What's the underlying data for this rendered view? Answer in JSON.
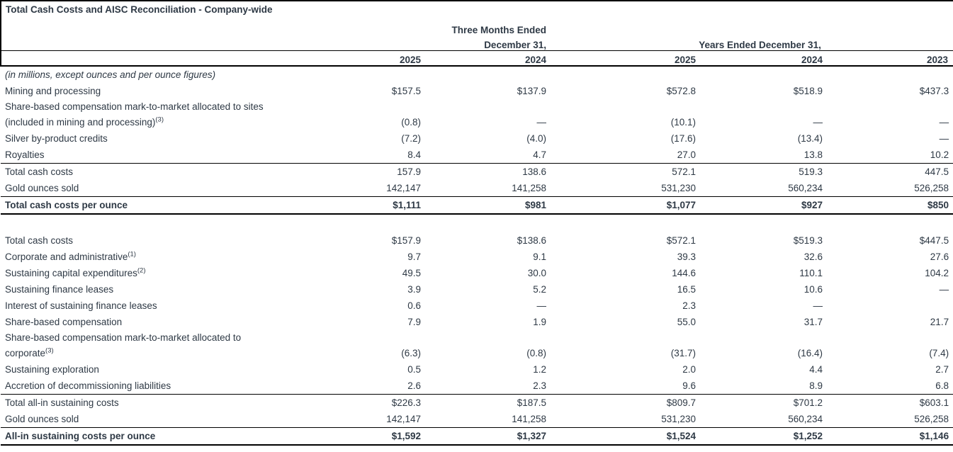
{
  "title": "Total Cash Costs and AISC Reconciliation - Company-wide",
  "header": {
    "quarter_group_line1": "Three Months Ended",
    "quarter_group_line2": "December 31,",
    "year_group": "Years Ended December 31,",
    "years": [
      "2025",
      "2024",
      "2025",
      "2024",
      "2023"
    ]
  },
  "note": "(in millions, except ounces and per ounce figures)",
  "colors": {
    "text": "#2e3945",
    "rule": "#000000",
    "background": "#ffffff"
  },
  "table": {
    "rows": [
      {
        "type": "note"
      },
      {
        "type": "data",
        "label": "Mining and processing",
        "values": [
          "$157.5",
          "$137.9",
          "$572.8",
          "$518.9",
          "$437.3"
        ]
      },
      {
        "type": "data",
        "label": "Share-based compensation mark-to-market allocated to sites",
        "label2": "(included in mining and processing)",
        "sup2": "(3)",
        "values": [
          "(0.8)",
          "—",
          "(10.1)",
          "—",
          "—"
        ]
      },
      {
        "type": "data",
        "label": "Silver by-product credits",
        "values": [
          "(7.2)",
          "(4.0)",
          "(17.6)",
          "(13.4)",
          "—"
        ]
      },
      {
        "type": "data",
        "label": "Royalties",
        "values": [
          "8.4",
          "4.7",
          "27.0",
          "13.8",
          "10.2"
        ]
      },
      {
        "type": "data",
        "label": "Total cash costs",
        "rule_top": true,
        "values": [
          "157.9",
          "138.6",
          "572.1",
          "519.3",
          "447.5"
        ]
      },
      {
        "type": "data",
        "label": "Gold ounces sold",
        "values": [
          "142,147",
          "141,258",
          "531,230",
          "560,234",
          "526,258"
        ]
      },
      {
        "type": "data",
        "label": "Total cash costs per ounce",
        "bold": true,
        "rule_top": true,
        "rule_bottom": true,
        "values": [
          "$1,111",
          "$981",
          "$1,077",
          "$927",
          "$850"
        ]
      },
      {
        "type": "spacer"
      },
      {
        "type": "data",
        "label": "Total cash costs",
        "values": [
          "$157.9",
          "$138.6",
          "$572.1",
          "$519.3",
          "$447.5"
        ]
      },
      {
        "type": "data",
        "label": "Corporate and administrative",
        "sup": "(1)",
        "values": [
          "9.7",
          "9.1",
          "39.3",
          "32.6",
          "27.6"
        ]
      },
      {
        "type": "data",
        "label": "Sustaining capital expenditures",
        "sup": "(2)",
        "values": [
          "49.5",
          "30.0",
          "144.6",
          "110.1",
          "104.2"
        ]
      },
      {
        "type": "data",
        "label": "Sustaining finance leases",
        "values": [
          "3.9",
          "5.2",
          "16.5",
          "10.6",
          "—"
        ]
      },
      {
        "type": "data",
        "label": "Interest of sustaining finance leases",
        "values": [
          "0.6",
          "—",
          "2.3",
          "—",
          ""
        ]
      },
      {
        "type": "data",
        "label": "Share-based compensation",
        "values": [
          "7.9",
          "1.9",
          "55.0",
          "31.7",
          "21.7"
        ]
      },
      {
        "type": "data",
        "label": "Share-based compensation mark-to-market allocated to",
        "label2": "corporate",
        "sup2": "(3)",
        "values": [
          "(6.3)",
          "(0.8)",
          "(31.7)",
          "(16.4)",
          "(7.4)"
        ]
      },
      {
        "type": "data",
        "label": "Sustaining exploration",
        "values": [
          "0.5",
          "1.2",
          "2.0",
          "4.4",
          "2.7"
        ]
      },
      {
        "type": "data",
        "label": "Accretion of decommissioning liabilities",
        "values": [
          "2.6",
          "2.3",
          "9.6",
          "8.9",
          "6.8"
        ]
      },
      {
        "type": "data",
        "label": "Total all-in sustaining costs",
        "rule_top": true,
        "values": [
          "$226.3",
          "$187.5",
          "$809.7",
          "$701.2",
          "$603.1"
        ]
      },
      {
        "type": "data",
        "label": "Gold ounces sold",
        "values": [
          "142,147",
          "141,258",
          "531,230",
          "560,234",
          "526,258"
        ]
      },
      {
        "type": "data",
        "label": "All-in sustaining costs per ounce",
        "bold": true,
        "rule_top": true,
        "rule_bottom": true,
        "values": [
          "$1,592",
          "$1,327",
          "$1,524",
          "$1,252",
          "$1,146"
        ]
      }
    ]
  }
}
